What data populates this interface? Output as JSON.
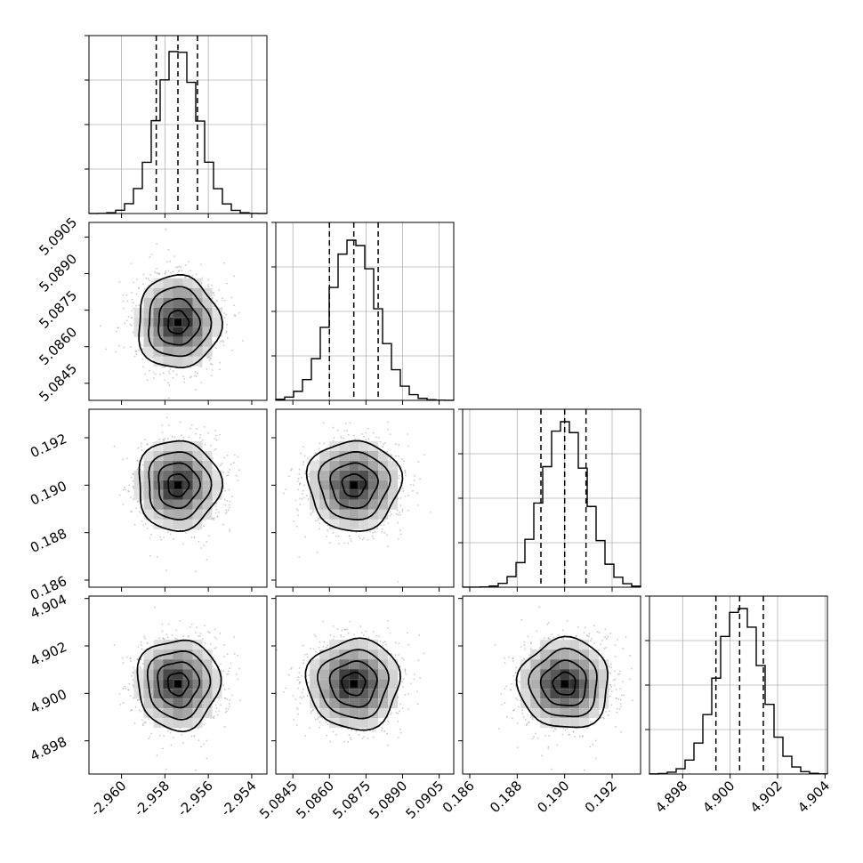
{
  "chart_data": {
    "type": "corner",
    "grid": true,
    "colors": {
      "line": "#000000",
      "scatter": "#9e9e9e",
      "density_max": "#000000",
      "grid": "#b0b0b0"
    },
    "parameters": [
      {
        "range": [
          -2.9615,
          -2.9533
        ],
        "ticks": [
          "-2.960",
          "-2.958",
          "-2.956",
          "-2.954"
        ],
        "tick_values": [
          -2.96,
          -2.958,
          -2.956,
          -2.954
        ],
        "mean": -2.9574,
        "sigma": 0.00095,
        "quantiles": [
          -2.9584,
          -2.9574,
          -2.9565
        ]
      },
      {
        "range": [
          5.0838,
          5.0911
        ],
        "ticks": [
          "5.0845",
          "5.0860",
          "5.0875",
          "5.0890",
          "5.0905"
        ],
        "tick_values": [
          5.0845,
          5.086,
          5.0875,
          5.089,
          5.0905
        ],
        "mean": 5.087,
        "sigma": 0.00095,
        "quantiles": [
          5.086,
          5.087,
          5.088
        ]
      },
      {
        "range": [
          0.1857,
          0.1932
        ],
        "ticks": [
          "0.186",
          "0.188",
          "0.190",
          "0.192"
        ],
        "tick_values": [
          0.186,
          0.188,
          0.19,
          0.192
        ],
        "mean": 0.19,
        "sigma": 0.00095,
        "quantiles": [
          0.189,
          0.19,
          0.1909
        ]
      },
      {
        "range": [
          4.8966,
          4.9041
        ],
        "ticks": [
          "4.898",
          "4.900",
          "4.902",
          "4.904"
        ],
        "tick_values": [
          4.898,
          4.9,
          4.902,
          4.904
        ],
        "mean": 4.9004,
        "sigma": 0.00095,
        "quantiles": [
          4.8994,
          4.9004,
          4.9014
        ]
      }
    ],
    "histograms": [
      {
        "peak_fraction": 0.91
      },
      {
        "peak_fraction": 0.9
      },
      {
        "peak_fraction": 0.93
      },
      {
        "peak_fraction": 0.93
      }
    ],
    "contour_levels_sigma": [
      0.5,
      1.0,
      1.5,
      2.0
    ]
  }
}
